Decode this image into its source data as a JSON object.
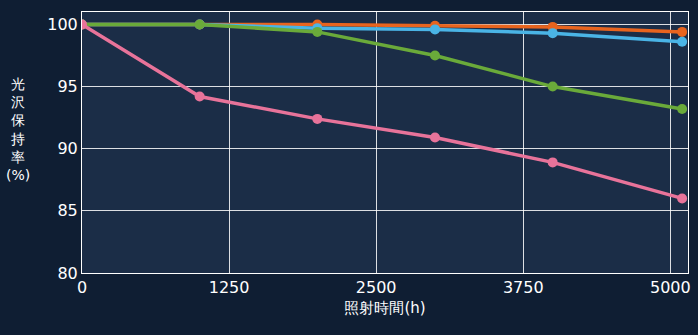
{
  "chart_data": {
    "type": "line",
    "x_label": "照射時間(h)",
    "y_label": "光沢保持率(%)",
    "x": [
      0,
      1000,
      2000,
      3000,
      4000,
      5100
    ],
    "series": [
      {
        "color": "#e8641e",
        "values": [
          100,
          100,
          100,
          99.9,
          99.8,
          99.4
        ]
      },
      {
        "color": "#4ab4e6",
        "values": [
          100,
          100,
          99.7,
          99.6,
          99.3,
          98.6
        ]
      },
      {
        "color": "#6aaa3a",
        "values": [
          100,
          100,
          99.4,
          97.5,
          95.0,
          93.2
        ]
      },
      {
        "color": "#e8739a",
        "values": [
          100,
          94.2,
          92.4,
          90.9,
          88.9,
          86.0
        ]
      }
    ],
    "xlim": [
      0,
      5150
    ],
    "xticks": [
      0,
      1250,
      2500,
      3750,
      5000
    ],
    "ylim": [
      80,
      101
    ],
    "yticks": [
      80,
      85,
      90,
      95,
      100
    ],
    "grid": true,
    "marker": "circle",
    "line_style": "solid"
  }
}
